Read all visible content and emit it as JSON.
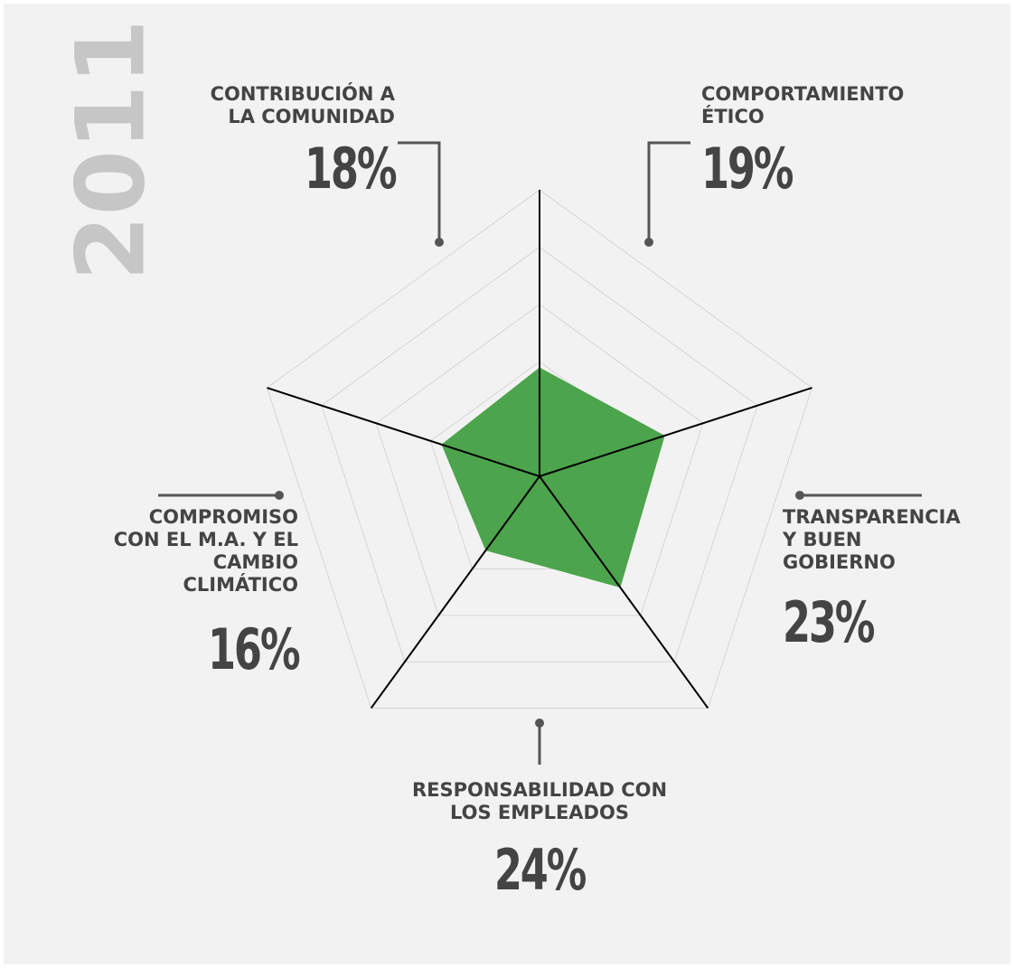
{
  "chart_data": {
    "type": "radar",
    "title": "2011",
    "categories": [
      "COMPORTAMIENTO\nÉTICO",
      "TRANSPARENCIA\nY BUEN\nGOBIERNO",
      "RESPONSABILIDAD CON\nLOS EMPLEADOS",
      "COMPROMISO\nCON EL M.A. Y EL\nCAMBIO\nCLIMÁTICO",
      "CONTRIBUCIÓN A\nLA COMUNIDAD"
    ],
    "values": [
      19,
      23,
      24,
      16,
      18
    ],
    "value_labels": [
      "19%",
      "23%",
      "24%",
      "16%",
      "18%"
    ],
    "color": "#3f9e3f",
    "ylim": [
      0,
      50
    ],
    "yticks": [
      10,
      20,
      30,
      40,
      50
    ],
    "grid": true
  }
}
